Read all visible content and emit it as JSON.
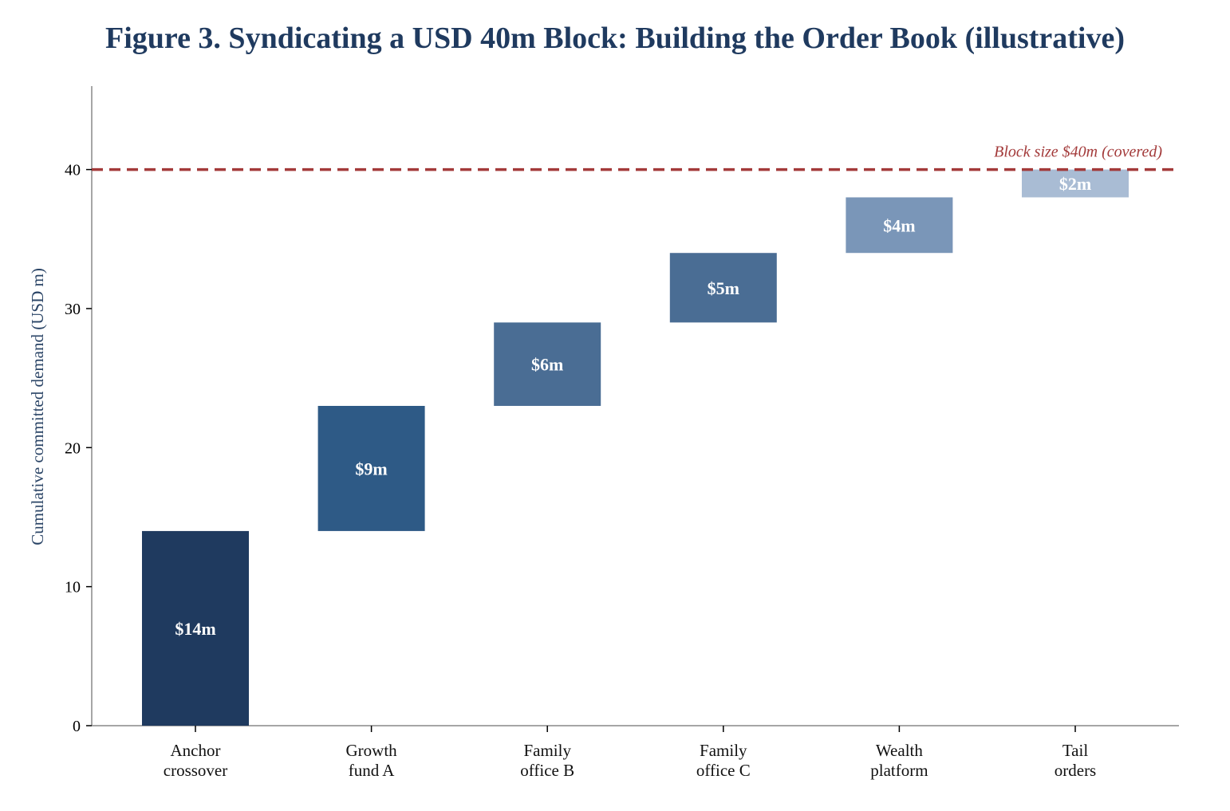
{
  "chart_data": {
    "type": "bar",
    "subtype": "waterfall",
    "title": "Figure 3. Syndicating a USD 40m Block: Building the Order Book (illustrative)",
    "xlabel": "",
    "ylabel": "Cumulative committed demand (USD m)",
    "ylim": [
      0,
      46
    ],
    "yticks": [
      0,
      10,
      20,
      30,
      40
    ],
    "categories": [
      [
        "Anchor",
        "crossover"
      ],
      [
        "Growth",
        "fund A"
      ],
      [
        "Family",
        "office B"
      ],
      [
        "Family",
        "office C"
      ],
      [
        "Wealth",
        "platform"
      ],
      [
        "Tail",
        "orders"
      ]
    ],
    "series": [
      {
        "values": [
          14,
          9,
          6,
          5,
          4,
          2
        ],
        "bases": [
          0,
          14,
          23,
          29,
          34,
          38
        ],
        "labels": [
          "$14m",
          "$9m",
          "$6m",
          "$5m",
          "$4m",
          "$2m"
        ],
        "colors": [
          "#1f3a5f",
          "#2e5a86",
          "#4a6d94",
          "#4a6d94",
          "#7a96b8",
          "#a9bcd4"
        ]
      }
    ],
    "reference_line": {
      "value": 40,
      "label": "Block size $40m (covered)",
      "color": "#a33a3a",
      "style": "dashed"
    },
    "grid": false,
    "legend": "none"
  }
}
